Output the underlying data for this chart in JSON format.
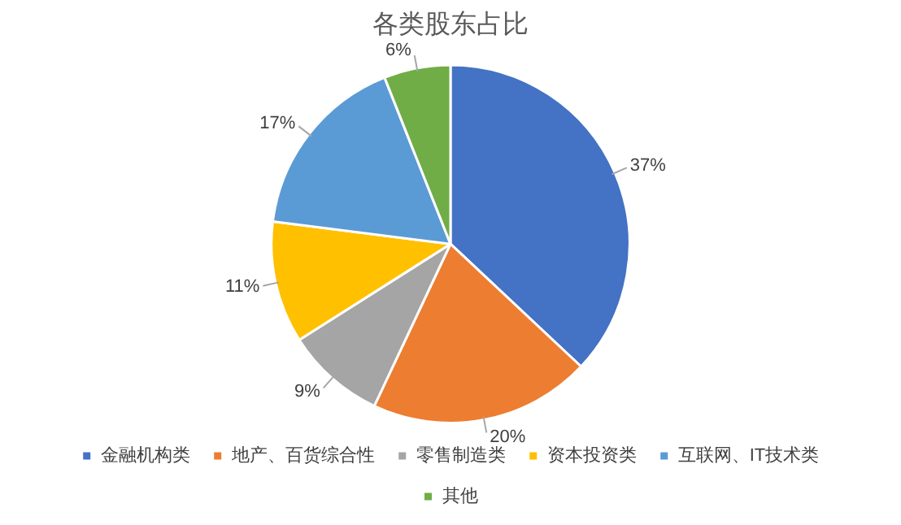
{
  "chart_data": {
    "type": "pie",
    "title": "各类股东占比",
    "categories": [
      "金融机构类",
      "地产、百货综合性",
      "零售制造类",
      "资本投资类",
      "互联网、IT技术类",
      "其他"
    ],
    "values": [
      37,
      20,
      9,
      11,
      17,
      6
    ],
    "colors": [
      "#4472c4",
      "#ed7d31",
      "#a5a5a5",
      "#ffc000",
      "#5b9bd5",
      "#70ad47"
    ],
    "value_labels": [
      "37%",
      "20%",
      "9%",
      "11%",
      "17%",
      "6%"
    ],
    "legend": "bottom"
  }
}
